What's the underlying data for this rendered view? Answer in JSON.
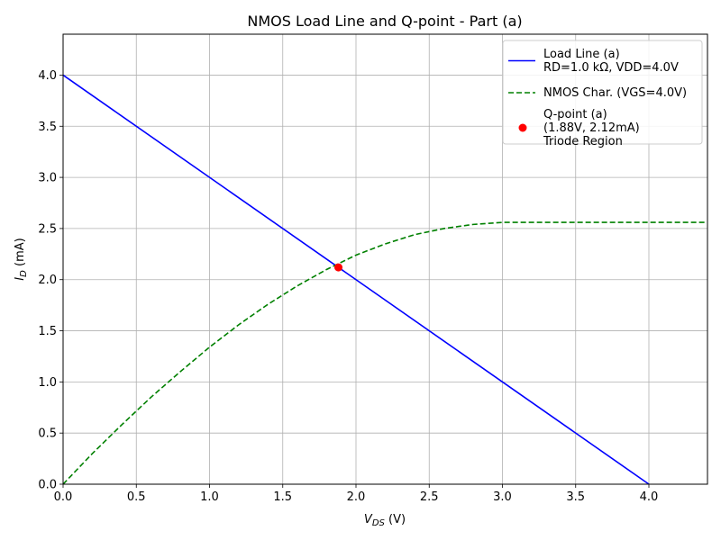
{
  "chart_data": {
    "type": "line",
    "title": "NMOS Load Line and Q-point - Part (a)",
    "xlabel": {
      "main": "V",
      "sub": "DS",
      "unit": " (V)"
    },
    "ylabel": {
      "main": "I",
      "sub": "D",
      "unit": " (mA)"
    },
    "xlim": [
      0,
      4.4
    ],
    "ylim": [
      0,
      4.4
    ],
    "xticks": [
      0,
      0.5,
      1,
      1.5,
      2,
      2.5,
      3,
      3.5,
      4
    ],
    "xtick_labels": [
      "0.0",
      "0.5",
      "1.0",
      "1.5",
      "2.0",
      "2.5",
      "3.0",
      "3.5",
      "4.0"
    ],
    "yticks": [
      0,
      0.5,
      1,
      1.5,
      2,
      2.5,
      3,
      3.5,
      4
    ],
    "ytick_labels": [
      "0.0",
      "0.5",
      "1.0",
      "1.5",
      "2.0",
      "2.5",
      "3.0",
      "3.5",
      "4.0"
    ],
    "grid": true,
    "legend_position": "top-right",
    "series": [
      {
        "name": "Load Line (a)\nRD=1.0 kΩ, VDD=4.0V",
        "style": "solid",
        "color": "#0000ff",
        "x": [
          0,
          4.0
        ],
        "y": [
          4.0,
          0
        ]
      },
      {
        "name": "NMOS Char. (VGS=4.0V)",
        "style": "dashed",
        "color": "#008000",
        "x": [
          0,
          0.2,
          0.4,
          0.6,
          0.8,
          1.0,
          1.2,
          1.4,
          1.6,
          1.8,
          2.0,
          2.2,
          2.4,
          2.6,
          2.8,
          3.0,
          3.2,
          3.4,
          3.6,
          3.8,
          4.0,
          4.2,
          4.4
        ],
        "y": [
          0,
          0.3,
          0.58,
          0.85,
          1.1,
          1.34,
          1.56,
          1.76,
          1.94,
          2.1,
          2.24,
          2.35,
          2.44,
          2.5,
          2.54,
          2.56,
          2.56,
          2.56,
          2.56,
          2.56,
          2.56,
          2.56,
          2.56
        ]
      }
    ],
    "points": [
      {
        "name": "Q-point (a)\n(1.88V, 2.12mA)\nTriode Region",
        "color": "#ff0000",
        "x": 1.88,
        "y": 2.12
      }
    ]
  }
}
